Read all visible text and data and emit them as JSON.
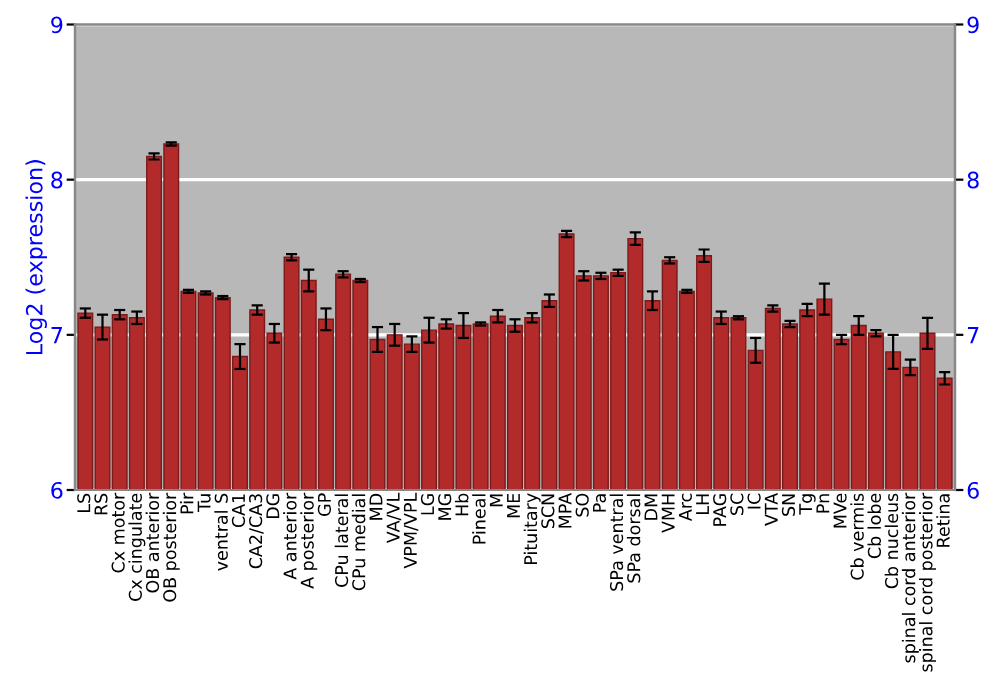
{
  "chart_data": {
    "type": "bar",
    "ylabel": "Log2 (expression)",
    "categories": [
      "LS",
      "RS",
      "Cx motor",
      "Cx cingulate",
      "OB anterior",
      "OB posterior",
      "Pir",
      "Tu",
      "ventral S",
      "CA1",
      "CA2/CA3",
      "DG",
      "A anterior",
      "A posterior",
      "GP",
      "CPu lateral",
      "CPu medial",
      "MD",
      "VA/VL",
      "VPM/VPL",
      "LG",
      "MG",
      "Hb",
      "Pineal",
      "M",
      "ME",
      "Pituitary",
      "SCN",
      "MPA",
      "SO",
      "Pa",
      "SPa ventral",
      "SPa dorsal",
      "DM",
      "VMH",
      "Arc",
      "LH",
      "PAG",
      "SC",
      "IC",
      "VTA",
      "SN",
      "Tg",
      "Pn",
      "MVe",
      "Cb vermis",
      "Cb lobe",
      "Cb nucleus",
      "spinal cord anterior",
      "spinal cord posterior",
      "Retina"
    ],
    "values": [
      7.14,
      7.05,
      7.13,
      7.11,
      8.15,
      8.23,
      7.28,
      7.27,
      7.24,
      6.86,
      7.16,
      7.01,
      7.5,
      7.35,
      7.1,
      7.39,
      7.35,
      6.97,
      7.0,
      6.94,
      7.03,
      7.07,
      7.06,
      7.07,
      7.12,
      7.06,
      7.11,
      7.22,
      7.65,
      7.38,
      7.38,
      7.4,
      7.62,
      7.22,
      7.48,
      7.28,
      7.51,
      7.11,
      7.11,
      6.9,
      7.17,
      7.07,
      7.16,
      7.23,
      6.97,
      7.06,
      7.01,
      6.89,
      6.79,
      7.01,
      6.72
    ],
    "errors": [
      0.03,
      0.08,
      0.03,
      0.04,
      0.02,
      0.01,
      0.01,
      0.01,
      0.01,
      0.08,
      0.03,
      0.06,
      0.02,
      0.07,
      0.07,
      0.02,
      0.01,
      0.08,
      0.07,
      0.05,
      0.08,
      0.03,
      0.08,
      0.01,
      0.04,
      0.04,
      0.03,
      0.04,
      0.02,
      0.03,
      0.02,
      0.02,
      0.04,
      0.06,
      0.02,
      0.01,
      0.04,
      0.04,
      0.01,
      0.08,
      0.02,
      0.02,
      0.04,
      0.1,
      0.03,
      0.06,
      0.02,
      0.11,
      0.05,
      0.1,
      0.04
    ],
    "color": "#b22a2a",
    "ylim": [
      6,
      9
    ],
    "yticks": [
      6,
      7,
      8,
      9
    ],
    "y2lim": [
      6,
      9
    ],
    "y2ticks": [
      6,
      7,
      8,
      9
    ],
    "grid": "y"
  }
}
